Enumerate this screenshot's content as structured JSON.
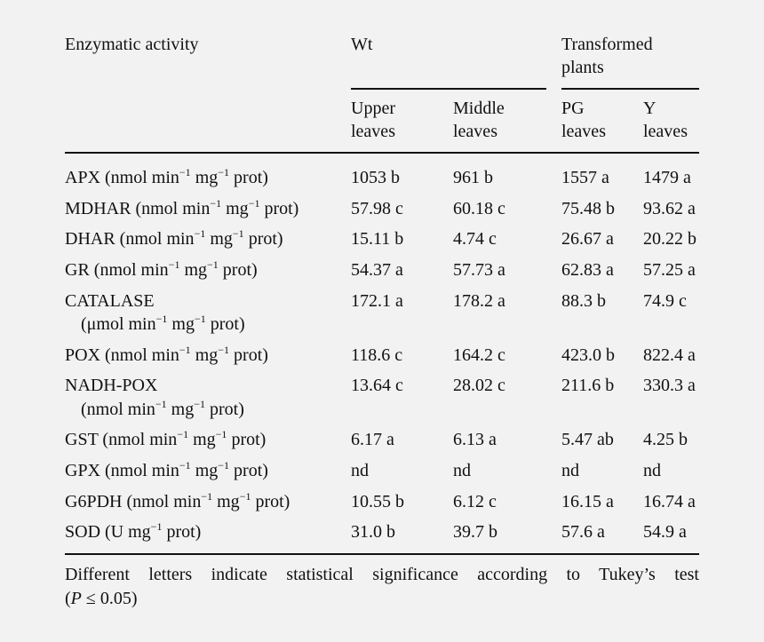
{
  "header": {
    "enzymatic_activity": "Enzymatic activity",
    "wt": "Wt",
    "transformed_line1": "Transformed",
    "transformed_line2": "plants",
    "upper_1": "Upper",
    "upper_2": "leaves",
    "middle_1": "Middle",
    "middle_2": "leaves",
    "pg_1": "PG",
    "pg_2": "leaves",
    "y_1": "Y",
    "y_2": "leaves"
  },
  "rows": [
    {
      "name": "APX (nmol min",
      "sup1": "−1",
      "mid": " mg",
      "sup2": "−1",
      "tail": " prot)",
      "upper": "1053 b",
      "middle": "961 b",
      "pg": "1557 a",
      "y": "1479 a"
    },
    {
      "name": "MDHAR (nmol min",
      "sup1": "−1",
      "mid": " mg",
      "sup2": "−1",
      "tail": " prot)",
      "upper": "57.98 c",
      "middle": "60.18 c",
      "pg": "75.48 b",
      "y": "93.62 a"
    },
    {
      "name": "DHAR (nmol min",
      "sup1": "−1",
      "mid": " mg",
      "sup2": "−1",
      "tail": " prot)",
      "upper": "15.11 b",
      "middle": "4.74 c",
      "pg": "26.67 a",
      "y": "20.22 b"
    },
    {
      "name": "GR (nmol min",
      "sup1": "−1",
      "mid": " mg",
      "sup2": "−1",
      "tail": " prot)",
      "upper": "54.37 a",
      "middle": "57.73 a",
      "pg": "62.83 a",
      "y": "57.25 a"
    },
    {
      "name": "CATALASE",
      "line2a": "(μmol min",
      "sup1": "−1",
      "mid": " mg",
      "sup2": "−1",
      "tail": " prot)",
      "upper": "172.1 a",
      "middle": "178.2 a",
      "pg": "88.3 b",
      "y": "74.9 c"
    },
    {
      "name": "POX (nmol min",
      "sup1": "−1",
      "mid": " mg",
      "sup2": "−1",
      "tail": " prot)",
      "upper": "118.6 c",
      "middle": "164.2 c",
      "pg": "423.0 b",
      "y": "822.4 a"
    },
    {
      "name": "NADH-POX",
      "line2a": "(nmol min",
      "sup1": "−1",
      "mid": " mg",
      "sup2": "−1",
      "tail": " prot)",
      "upper": "13.64 c",
      "middle": "28.02 c",
      "pg": "211.6 b",
      "y": "330.3 a"
    },
    {
      "name": "GST (nmol min",
      "sup1": "−1",
      "mid": " mg",
      "sup2": "−1",
      "tail": " prot)",
      "upper": "6.17 a",
      "middle": "6.13 a",
      "pg": "5.47 ab",
      "y": "4.25 b"
    },
    {
      "name": "GPX (nmol min",
      "sup1": "−1",
      "mid": " mg",
      "sup2": "−1",
      "tail": " prot)",
      "upper": "nd",
      "middle": "nd",
      "pg": "nd",
      "y": "nd"
    },
    {
      "name": "G6PDH (nmol min",
      "sup1": "−1",
      "mid": " mg",
      "sup2": "−1",
      "tail": " prot)",
      "upper": "10.55 b",
      "middle": "6.12 c",
      "pg": "16.15 a",
      "y": "16.74 a"
    },
    {
      "name": "SOD (U mg",
      "sup1": "−1",
      "mid": " prot)",
      "upper": "31.0 b",
      "middle": "39.7 b",
      "pg": "57.6 a",
      "y": "54.9 a"
    }
  ],
  "footnote": {
    "line1": "Different letters indicate statistical significance according to Tukey’s test",
    "line2_open": "(",
    "line2_p": "P",
    "line2_rest": " ≤ 0.05)"
  }
}
